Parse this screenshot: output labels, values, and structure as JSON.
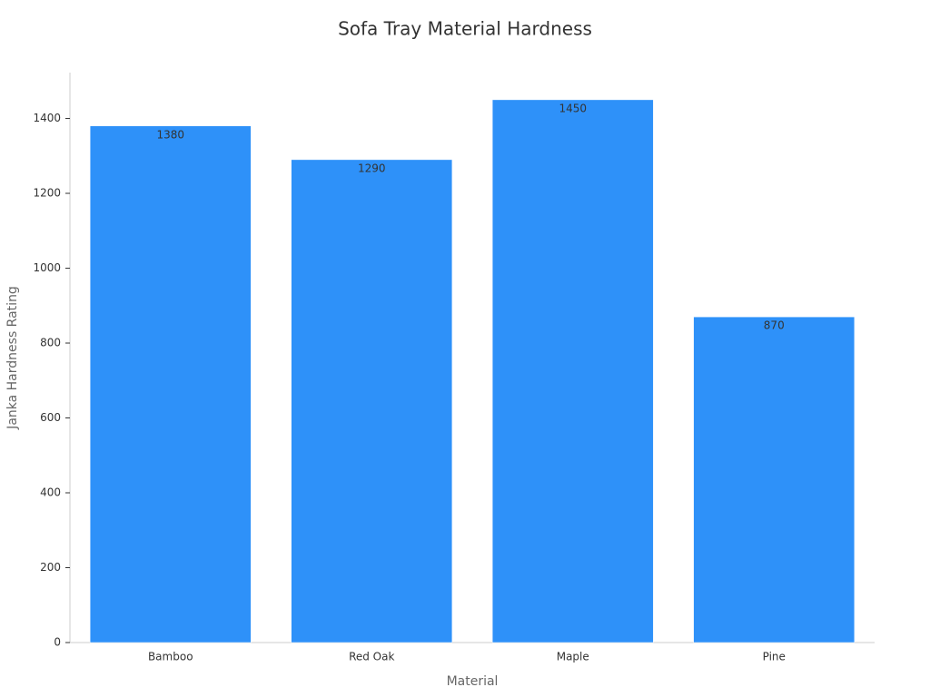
{
  "chart_data": {
    "type": "bar",
    "title": "Sofa Tray Material Hardness",
    "x_label": "Material",
    "y_label": "Janka Hardness Rating",
    "categories": [
      "Bamboo",
      "Red Oak",
      "Maple",
      "Pine"
    ],
    "values": [
      1380,
      1290,
      1450,
      870
    ],
    "color": "#2e91f9",
    "ylim": [
      0,
      1522.5
    ],
    "yticks": [
      0,
      200,
      400,
      600,
      800,
      1000,
      1200,
      1400
    ],
    "grid": false
  }
}
